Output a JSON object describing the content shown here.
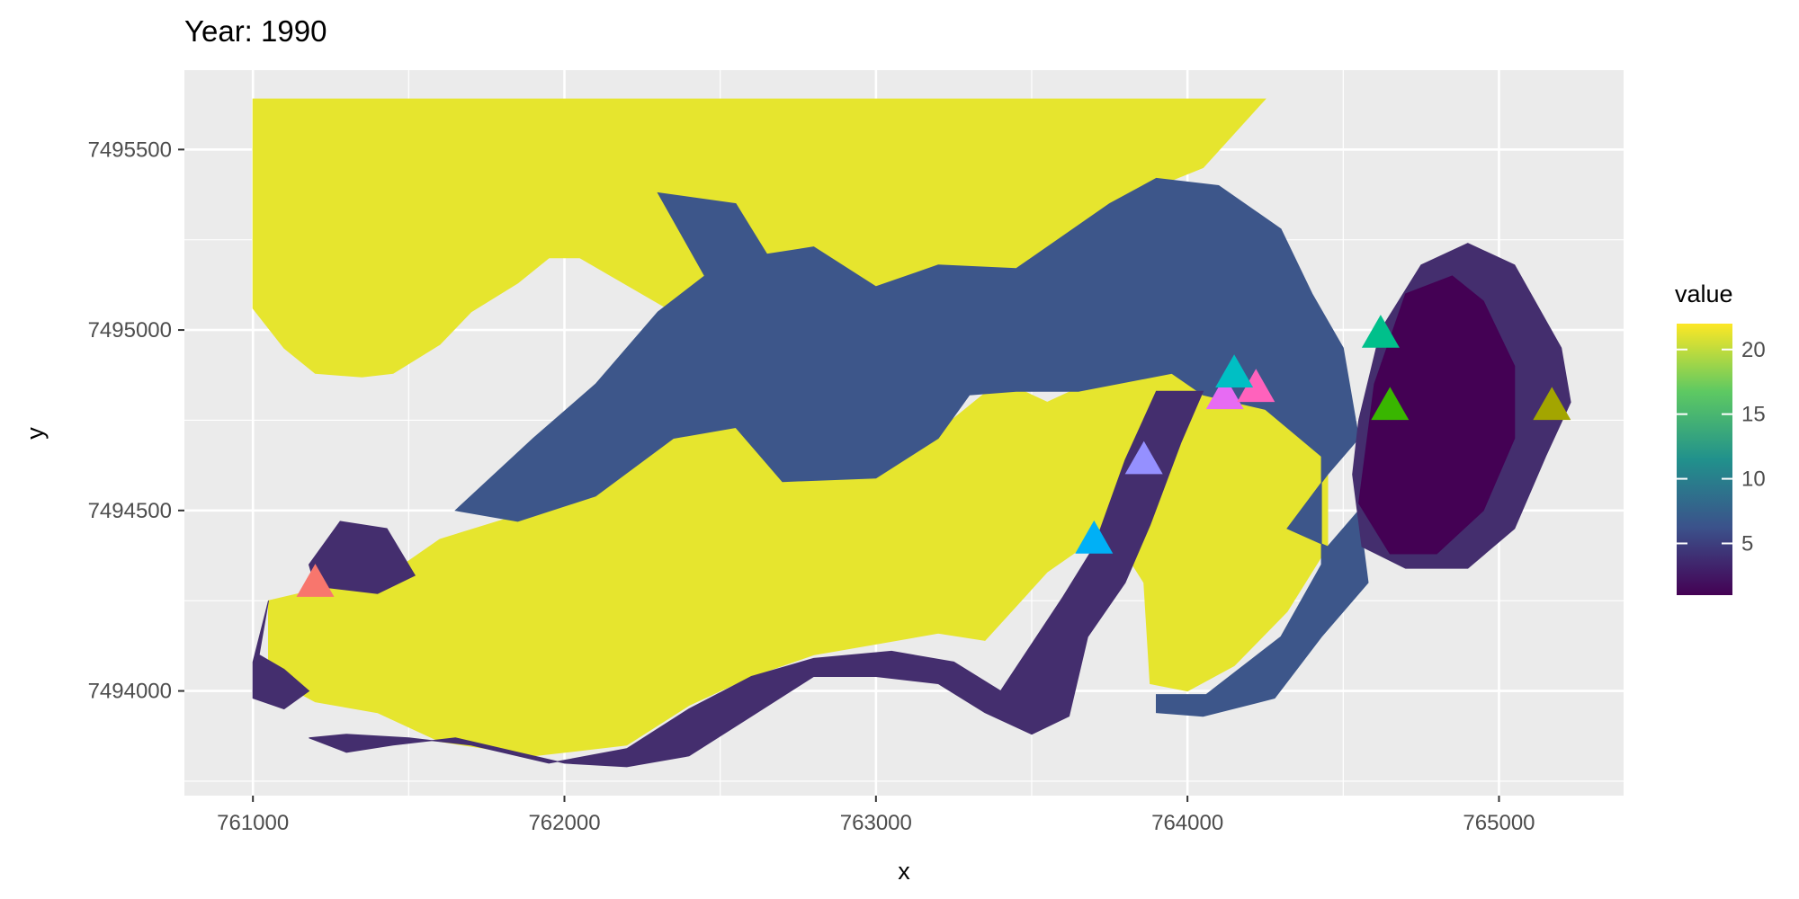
{
  "chart_data": {
    "type": "heatmap",
    "title": "Year: 1990",
    "xlabel": "x",
    "ylabel": "y",
    "xlim": [
      760780,
      765400
    ],
    "ylim": [
      7493710,
      7495720
    ],
    "x_ticks": [
      761000,
      762000,
      763000,
      764000,
      765000
    ],
    "x_tick_labels": [
      "761000",
      "762000",
      "763000",
      "764000",
      "765000"
    ],
    "y_ticks": [
      7494000,
      7494500,
      7495000,
      7495500
    ],
    "y_tick_labels": [
      "7494000",
      "7494500",
      "7495000",
      "7495500"
    ],
    "grid": true,
    "panel_background": "#ebebeb",
    "grid_color": "#ffffff",
    "legend": {
      "title": "value",
      "position": "right",
      "range": [
        1,
        22
      ],
      "breaks": [
        5,
        10,
        15,
        20
      ],
      "break_labels": [
        "5",
        "10",
        "15",
        "20"
      ],
      "colors": [
        "#440154",
        "#3b528b",
        "#21918c",
        "#5ec962",
        "#fde725"
      ]
    },
    "raster_regions": [
      {
        "class": "high",
        "value": 22,
        "color": "#e6e52e",
        "polygon": [
          [
            761000,
            7495640
          ],
          [
            764250,
            7495640
          ],
          [
            764050,
            7495450
          ],
          [
            763850,
            7495380
          ],
          [
            763700,
            7495300
          ],
          [
            763600,
            7495150
          ],
          [
            763450,
            7495080
          ],
          [
            763300,
            7495050
          ],
          [
            763150,
            7495060
          ],
          [
            763000,
            7495030
          ],
          [
            762800,
            7495000
          ],
          [
            762550,
            7495020
          ],
          [
            762350,
            7495050
          ],
          [
            762150,
            7495150
          ],
          [
            762050,
            7495200
          ],
          [
            761950,
            7495200
          ],
          [
            761850,
            7495130
          ],
          [
            761700,
            7495050
          ],
          [
            761600,
            7494960
          ],
          [
            761450,
            7494880
          ],
          [
            761350,
            7494870
          ],
          [
            761200,
            7494880
          ],
          [
            761100,
            7494950
          ],
          [
            761000,
            7495060
          ]
        ]
      },
      {
        "class": "high",
        "value": 22,
        "color": "#e6e52e",
        "polygon": [
          [
            761050,
            7494250
          ],
          [
            761200,
            7494280
          ],
          [
            761400,
            7494300
          ],
          [
            761600,
            7494420
          ],
          [
            761900,
            7494500
          ],
          [
            762100,
            7494560
          ],
          [
            762400,
            7494740
          ],
          [
            762600,
            7494740
          ],
          [
            762700,
            7494600
          ],
          [
            763000,
            7494600
          ],
          [
            763200,
            7494720
          ],
          [
            763400,
            7494860
          ],
          [
            763550,
            7494800
          ],
          [
            763700,
            7494860
          ],
          [
            763850,
            7494900
          ],
          [
            763950,
            7494920
          ],
          [
            764050,
            7494850
          ],
          [
            764250,
            7494800
          ],
          [
            764400,
            7494780
          ],
          [
            764450,
            7494700
          ],
          [
            764450,
            7494400
          ],
          [
            764320,
            7494220
          ],
          [
            764150,
            7494070
          ],
          [
            764000,
            7494000
          ],
          [
            763880,
            7494020
          ],
          [
            763860,
            7494300
          ],
          [
            763750,
            7494450
          ],
          [
            763550,
            7494330
          ],
          [
            763350,
            7494140
          ],
          [
            763200,
            7494160
          ],
          [
            763000,
            7494130
          ],
          [
            762800,
            7494100
          ],
          [
            762600,
            7494040
          ],
          [
            762400,
            7493960
          ],
          [
            762200,
            7493850
          ],
          [
            761900,
            7493820
          ],
          [
            761600,
            7493860
          ],
          [
            761400,
            7493940
          ],
          [
            761200,
            7493970
          ],
          [
            761050,
            7494040
          ]
        ]
      },
      {
        "class": "medium",
        "value": 7,
        "color": "#3d568a",
        "polygon": [
          [
            762300,
            7495380
          ],
          [
            762550,
            7495350
          ],
          [
            762650,
            7495210
          ],
          [
            762800,
            7495230
          ],
          [
            763000,
            7495120
          ],
          [
            763200,
            7495180
          ],
          [
            763450,
            7495170
          ],
          [
            763750,
            7495350
          ],
          [
            763900,
            7495420
          ],
          [
            764100,
            7495400
          ],
          [
            764300,
            7495280
          ],
          [
            764400,
            7495100
          ],
          [
            764500,
            7494950
          ],
          [
            764550,
            7494700
          ],
          [
            764450,
            7494600
          ],
          [
            764320,
            7494450
          ],
          [
            764450,
            7494400
          ],
          [
            764550,
            7494500
          ],
          [
            764580,
            7494300
          ],
          [
            764430,
            7494150
          ],
          [
            764280,
            7493980
          ],
          [
            764050,
            7493930
          ],
          [
            763900,
            7493940
          ],
          [
            763900,
            7493990
          ],
          [
            764060,
            7493990
          ],
          [
            764300,
            7494150
          ],
          [
            764430,
            7494350
          ],
          [
            764430,
            7494650
          ],
          [
            764250,
            7494780
          ],
          [
            764050,
            7494820
          ],
          [
            763950,
            7494880
          ],
          [
            763650,
            7494830
          ],
          [
            763450,
            7494830
          ],
          [
            763300,
            7494820
          ],
          [
            763200,
            7494700
          ],
          [
            763000,
            7494590
          ],
          [
            762700,
            7494580
          ],
          [
            762550,
            7494730
          ],
          [
            762350,
            7494700
          ],
          [
            762100,
            7494540
          ],
          [
            761850,
            7494470
          ],
          [
            761650,
            7494500
          ],
          [
            761900,
            7494700
          ],
          [
            762100,
            7494850
          ],
          [
            762300,
            7495050
          ],
          [
            762450,
            7495150
          ]
        ]
      },
      {
        "class": "low",
        "value": 3,
        "color": "#442e6e",
        "polygon": [
          [
            761180,
            7494350
          ],
          [
            761280,
            7494470
          ],
          [
            761430,
            7494450
          ],
          [
            761520,
            7494320
          ],
          [
            761400,
            7494270
          ],
          [
            761200,
            7494290
          ]
        ]
      },
      {
        "class": "low",
        "value": 3,
        "color": "#442e6e",
        "polygon": [
          [
            761020,
            7494100
          ],
          [
            761050,
            7494250
          ],
          [
            761000,
            7494080
          ],
          [
            761000,
            7493980
          ],
          [
            761100,
            7493950
          ],
          [
            761180,
            7494000
          ],
          [
            761100,
            7494060
          ]
        ]
      },
      {
        "class": "low",
        "value": 3,
        "color": "#442e6e",
        "polygon": [
          [
            761180,
            7493870
          ],
          [
            761300,
            7493830
          ],
          [
            761450,
            7493850
          ],
          [
            761650,
            7493870
          ],
          [
            761850,
            7493830
          ],
          [
            762000,
            7493800
          ],
          [
            762200,
            7493790
          ],
          [
            762400,
            7493820
          ],
          [
            762600,
            7493930
          ],
          [
            762800,
            7494040
          ],
          [
            763000,
            7494040
          ],
          [
            763200,
            7494020
          ],
          [
            763350,
            7493940
          ],
          [
            763500,
            7493880
          ],
          [
            763620,
            7493930
          ],
          [
            763680,
            7494150
          ],
          [
            763800,
            7494300
          ],
          [
            763880,
            7494460
          ],
          [
            763980,
            7494690
          ],
          [
            764050,
            7494830
          ],
          [
            763900,
            7494830
          ],
          [
            763800,
            7494640
          ],
          [
            763700,
            7494400
          ],
          [
            763600,
            7494260
          ],
          [
            763500,
            7494130
          ],
          [
            763400,
            7494000
          ],
          [
            763250,
            7494080
          ],
          [
            763050,
            7494110
          ],
          [
            762800,
            7494090
          ],
          [
            762600,
            7494040
          ],
          [
            762400,
            7493950
          ],
          [
            762200,
            7493840
          ],
          [
            761950,
            7493800
          ],
          [
            761700,
            7493850
          ],
          [
            761500,
            7493870
          ],
          [
            761300,
            7493880
          ]
        ]
      },
      {
        "class": "low",
        "value": 3,
        "color": "#442e6e",
        "polygon": [
          [
            764550,
            7494750
          ],
          [
            764620,
            7495000
          ],
          [
            764750,
            7495180
          ],
          [
            764900,
            7495240
          ],
          [
            765050,
            7495180
          ],
          [
            765200,
            7494950
          ],
          [
            765230,
            7494800
          ],
          [
            765150,
            7494650
          ],
          [
            765050,
            7494450
          ],
          [
            764900,
            7494340
          ],
          [
            764700,
            7494340
          ],
          [
            764560,
            7494400
          ],
          [
            764530,
            7494600
          ]
        ]
      },
      {
        "class": "lowest",
        "value": 1,
        "color": "#440154",
        "polygon": [
          [
            764550,
            7494520
          ],
          [
            764600,
            7494850
          ],
          [
            764700,
            7495100
          ],
          [
            764850,
            7495150
          ],
          [
            764950,
            7495080
          ],
          [
            765050,
            7494900
          ],
          [
            765050,
            7494700
          ],
          [
            764950,
            7494500
          ],
          [
            764800,
            7494380
          ],
          [
            764650,
            7494380
          ]
        ]
      }
    ],
    "points": [
      {
        "x": 761200,
        "y": 7494300,
        "color": "#f8766d"
      },
      {
        "x": 763700,
        "y": 7494420,
        "color": "#00b0f6"
      },
      {
        "x": 763860,
        "y": 7494640,
        "color": "#9590ff"
      },
      {
        "x": 764120,
        "y": 7494820,
        "color": "#e76bf3"
      },
      {
        "x": 764220,
        "y": 7494840,
        "color": "#ff62bc"
      },
      {
        "x": 764150,
        "y": 7494880,
        "color": "#00bfc4"
      },
      {
        "x": 764620,
        "y": 7494990,
        "color": "#00c08b"
      },
      {
        "x": 764650,
        "y": 7494790,
        "color": "#39b600"
      },
      {
        "x": 765170,
        "y": 7494790,
        "color": "#a3a500"
      }
    ]
  }
}
